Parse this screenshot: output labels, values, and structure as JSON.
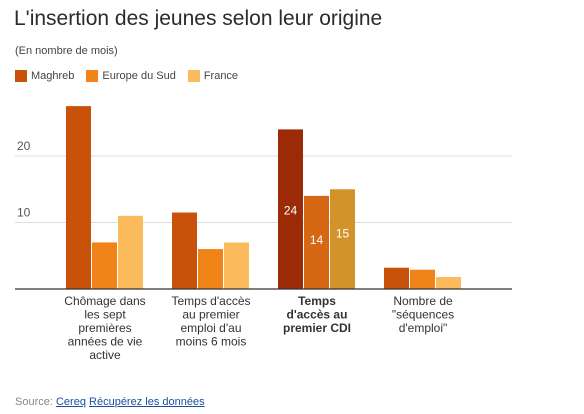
{
  "chart_data": {
    "type": "bar",
    "title": "L'insertion des jeunes selon leur origine",
    "subtitle": "(En nombre de mois)",
    "xlabel": "",
    "ylabel": "",
    "ylim": [
      0,
      28
    ],
    "yticks": [
      10,
      20
    ],
    "grid": true,
    "legend_position": "top-left",
    "categories": [
      {
        "lines": [
          "Chômage dans",
          "les sept",
          "premières",
          "années de vie",
          "active"
        ],
        "bold": false
      },
      {
        "lines": [
          "Temps d'accès",
          "au premier",
          "emploi d'au",
          "moins 6 mois"
        ],
        "bold": false
      },
      {
        "lines": [
          "Temps",
          "d'accès au",
          "premier CDI"
        ],
        "bold": true
      },
      {
        "lines": [
          "Nombre de",
          "\"séquences",
          "d'emploi\""
        ],
        "bold": false
      }
    ],
    "series": [
      {
        "name": "Maghreb",
        "color": "#c9520a",
        "values": [
          27.5,
          11.5,
          24,
          3.2
        ]
      },
      {
        "name": "Europe du Sud",
        "color": "#f08419",
        "values": [
          7,
          6,
          14,
          2.9
        ]
      },
      {
        "name": "France",
        "color": "#fbbb5d",
        "values": [
          11,
          7,
          15,
          1.8
        ]
      }
    ],
    "highlight": {
      "category_index": 2,
      "colors": [
        "#9c2a07",
        "#d66713",
        "#d2942a"
      ],
      "labels": [
        "24",
        "14",
        "15"
      ]
    }
  },
  "footer": {
    "source_label": "Source:",
    "source_link": "Cereq",
    "data_link": "Récupérez les données"
  }
}
